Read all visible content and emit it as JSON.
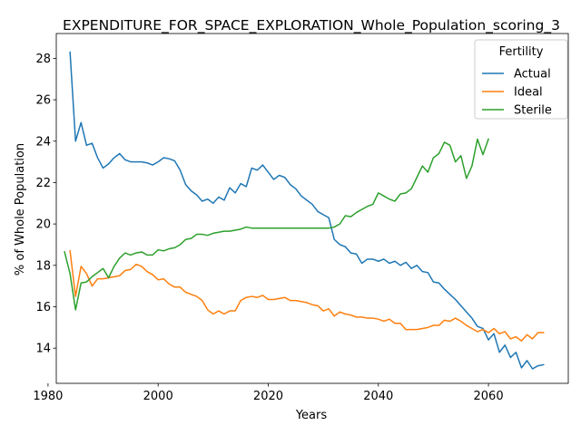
{
  "chart_data": {
    "type": "line",
    "title": "EXPENDITURE_FOR_SPACE_EXPLORATION_Whole_Population_scoring_3",
    "xlabel": "Years",
    "ylabel": "% of Whole Population",
    "xlim": [
      1981.5,
      2074.5
    ],
    "ylim": [
      12.3,
      29.2
    ],
    "xticks": [
      1980,
      2000,
      2020,
      2040,
      2060
    ],
    "yticks": [
      14,
      16,
      18,
      20,
      22,
      24,
      26,
      28
    ],
    "grid": false,
    "legend": {
      "title": "Fertility",
      "position": "top-right"
    },
    "series": [
      {
        "name": "Actual",
        "color": "#1f77b4",
        "x": [
          1984,
          1985,
          1986,
          1987,
          1988,
          1989,
          1990,
          1991,
          1992,
          1993,
          1994,
          1995,
          1996,
          1997,
          1998,
          1999,
          2000,
          2001,
          2002,
          2003,
          2004,
          2005,
          2006,
          2007,
          2008,
          2009,
          2010,
          2011,
          2012,
          2013,
          2014,
          2015,
          2016,
          2017,
          2018,
          2019,
          2020,
          2021,
          2022,
          2023,
          2024,
          2025,
          2026,
          2027,
          2028,
          2029,
          2030,
          2031,
          2032,
          2033,
          2034,
          2035,
          2036,
          2037,
          2038,
          2039,
          2040,
          2041,
          2042,
          2043,
          2044,
          2045,
          2046,
          2047,
          2048,
          2049,
          2050,
          2051,
          2052,
          2053,
          2054,
          2055,
          2056,
          2057,
          2058,
          2059,
          2060,
          2061,
          2062,
          2063,
          2064,
          2065,
          2066,
          2067,
          2068,
          2069,
          2070
        ],
        "values": [
          28.3,
          24.0,
          24.9,
          23.8,
          23.9,
          23.2,
          22.7,
          22.9,
          23.2,
          23.4,
          23.1,
          23.0,
          23.0,
          23.0,
          22.95,
          22.85,
          23.0,
          23.2,
          23.15,
          23.05,
          22.6,
          21.9,
          21.6,
          21.4,
          21.1,
          21.2,
          21.0,
          21.3,
          21.15,
          21.75,
          21.5,
          21.95,
          21.8,
          22.7,
          22.6,
          22.85,
          22.5,
          22.15,
          22.35,
          22.25,
          21.9,
          21.7,
          21.35,
          21.15,
          20.95,
          20.6,
          20.45,
          20.3,
          19.25,
          19.0,
          18.9,
          18.6,
          18.55,
          18.1,
          18.3,
          18.3,
          18.2,
          18.3,
          18.1,
          18.2,
          18.0,
          18.15,
          17.85,
          18.0,
          17.7,
          17.65,
          17.2,
          17.15,
          16.85,
          16.6,
          16.35,
          16.05,
          15.75,
          15.45,
          15.05,
          14.95,
          14.4,
          14.7,
          13.8,
          14.15,
          13.55,
          13.8,
          13.05,
          13.4,
          13.0,
          13.15,
          13.2
        ]
      },
      {
        "name": "Ideal",
        "color": "#ff7f0e",
        "x": [
          1984,
          1985,
          1986,
          1987,
          1988,
          1989,
          1990,
          1991,
          1992,
          1993,
          1994,
          1995,
          1996,
          1997,
          1998,
          1999,
          2000,
          2001,
          2002,
          2003,
          2004,
          2005,
          2006,
          2007,
          2008,
          2009,
          2010,
          2011,
          2012,
          2013,
          2014,
          2015,
          2016,
          2017,
          2018,
          2019,
          2020,
          2021,
          2022,
          2023,
          2024,
          2025,
          2026,
          2027,
          2028,
          2029,
          2030,
          2031,
          2032,
          2033,
          2034,
          2035,
          2036,
          2037,
          2038,
          2039,
          2040,
          2041,
          2042,
          2043,
          2044,
          2045,
          2046,
          2047,
          2048,
          2049,
          2050,
          2051,
          2052,
          2053,
          2054,
          2055,
          2056,
          2057,
          2058,
          2059,
          2060,
          2061,
          2062,
          2063,
          2064,
          2065,
          2066,
          2067,
          2068,
          2069,
          2070
        ],
        "values": [
          18.7,
          16.5,
          17.95,
          17.6,
          17.0,
          17.35,
          17.35,
          17.4,
          17.45,
          17.5,
          17.75,
          17.8,
          18.05,
          17.95,
          17.7,
          17.55,
          17.3,
          17.35,
          17.1,
          16.95,
          16.95,
          16.7,
          16.6,
          16.5,
          16.3,
          15.85,
          15.65,
          15.8,
          15.65,
          15.8,
          15.8,
          16.3,
          16.45,
          16.5,
          16.45,
          16.55,
          16.35,
          16.35,
          16.4,
          16.45,
          16.3,
          16.3,
          16.25,
          16.2,
          16.1,
          16.05,
          15.8,
          15.9,
          15.55,
          15.75,
          15.65,
          15.6,
          15.5,
          15.5,
          15.45,
          15.45,
          15.4,
          15.3,
          15.4,
          15.2,
          15.2,
          14.9,
          14.9,
          14.9,
          14.95,
          15.0,
          15.1,
          15.1,
          15.35,
          15.3,
          15.45,
          15.3,
          15.1,
          14.95,
          14.8,
          14.9,
          14.75,
          14.95,
          14.7,
          14.8,
          14.45,
          14.55,
          14.35,
          14.65,
          14.45,
          14.75,
          14.75
        ]
      },
      {
        "name": "Sterile",
        "color": "#2ca02c",
        "x": [
          1983,
          1984,
          1985,
          1986,
          1987,
          1988,
          1989,
          1990,
          1991,
          1992,
          1993,
          1994,
          1995,
          1996,
          1997,
          1998,
          1999,
          2000,
          2001,
          2002,
          2003,
          2004,
          2005,
          2006,
          2007,
          2008,
          2009,
          2010,
          2011,
          2012,
          2013,
          2014,
          2015,
          2016,
          2017,
          2018,
          2019,
          2020,
          2021,
          2022,
          2023,
          2024,
          2025,
          2026,
          2027,
          2028,
          2029,
          2030,
          2031,
          2032,
          2033,
          2034,
          2035,
          2036,
          2037,
          2038,
          2039,
          2040,
          2041,
          2042,
          2043,
          2044,
          2045,
          2046,
          2047,
          2048,
          2049,
          2050,
          2051,
          2052,
          2053,
          2054,
          2055,
          2056,
          2057,
          2058,
          2059,
          2060
        ],
        "values": [
          18.65,
          17.6,
          15.85,
          17.15,
          17.2,
          17.45,
          17.65,
          17.85,
          17.4,
          17.95,
          18.35,
          18.6,
          18.5,
          18.6,
          18.65,
          18.5,
          18.5,
          18.75,
          18.7,
          18.8,
          18.85,
          19.0,
          19.25,
          19.3,
          19.5,
          19.5,
          19.45,
          19.55,
          19.6,
          19.65,
          19.65,
          19.7,
          19.75,
          19.85,
          19.8,
          19.8,
          19.8,
          19.8,
          19.8,
          19.8,
          19.8,
          19.8,
          19.8,
          19.8,
          19.8,
          19.8,
          19.8,
          19.8,
          19.8,
          19.85,
          20.0,
          20.4,
          20.35,
          20.55,
          20.7,
          20.85,
          20.95,
          21.5,
          21.35,
          21.2,
          21.1,
          21.45,
          21.5,
          21.7,
          22.25,
          22.8,
          22.5,
          23.2,
          23.4,
          23.95,
          23.8,
          23.0,
          23.3,
          22.2,
          22.8,
          24.1,
          23.35,
          24.1
        ]
      }
    ]
  }
}
